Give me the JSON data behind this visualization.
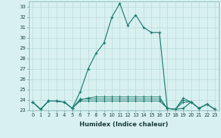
{
  "title": "",
  "xlabel": "Humidex (Indice chaleur)",
  "ylabel": "",
  "x": [
    0,
    1,
    2,
    3,
    4,
    5,
    6,
    7,
    8,
    9,
    10,
    11,
    12,
    13,
    14,
    15,
    16,
    17,
    18,
    19,
    20,
    21,
    22,
    23
  ],
  "y_main": [
    23.8,
    23.1,
    23.9,
    23.9,
    23.8,
    23.2,
    24.8,
    27.0,
    28.5,
    29.5,
    32.0,
    33.3,
    31.2,
    32.2,
    31.0,
    30.5,
    30.5,
    23.2,
    23.1,
    23.2,
    23.8,
    23.2,
    23.6,
    23.1
  ],
  "y_line2": [
    23.8,
    23.1,
    23.9,
    23.9,
    23.8,
    23.2,
    24.0,
    24.2,
    24.3,
    24.3,
    24.3,
    24.3,
    24.3,
    24.3,
    24.3,
    24.3,
    24.3,
    23.2,
    23.1,
    24.2,
    23.8,
    23.2,
    23.6,
    23.1
  ],
  "y_line3": [
    23.8,
    23.1,
    23.9,
    23.9,
    23.8,
    23.2,
    24.1,
    24.1,
    24.1,
    24.1,
    24.1,
    24.1,
    24.1,
    24.1,
    24.1,
    24.1,
    24.1,
    23.2,
    23.1,
    24.0,
    23.8,
    23.2,
    23.6,
    23.1
  ],
  "y_line4": [
    23.8,
    23.1,
    23.9,
    23.9,
    23.8,
    23.2,
    23.9,
    23.9,
    23.9,
    23.9,
    23.9,
    23.9,
    23.9,
    23.9,
    23.9,
    23.9,
    23.9,
    23.2,
    23.1,
    23.8,
    23.8,
    23.2,
    23.6,
    23.1
  ],
  "line_color": "#1a7a6e",
  "bg_color": "#d8f0f0",
  "grid_color": "#b8d8d8",
  "ylim": [
    23,
    33.5
  ],
  "yticks": [
    23,
    24,
    25,
    26,
    27,
    28,
    29,
    30,
    31,
    32,
    33
  ],
  "xlim": [
    -0.5,
    23.5
  ],
  "xticks": [
    0,
    1,
    2,
    3,
    4,
    5,
    6,
    7,
    8,
    9,
    10,
    11,
    12,
    13,
    14,
    15,
    16,
    17,
    18,
    19,
    20,
    21,
    22,
    23
  ],
  "tick_fontsize": 5.0,
  "xlabel_fontsize": 6.5
}
